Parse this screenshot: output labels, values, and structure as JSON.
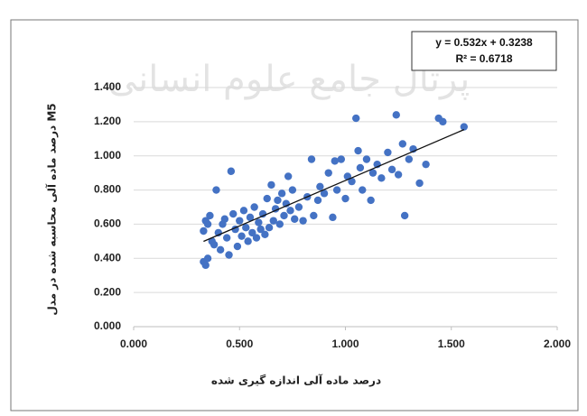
{
  "chart_data": {
    "type": "scatter",
    "watermark": "پرتال جامع علوم انسانی",
    "x_label": "درصد ماده آلی اندازه گیری شده",
    "y_label": "درصد ماده آلی محاسبه شده در مدل M5",
    "color": "#4472c4",
    "x": [
      0.33,
      0.34,
      0.35,
      0.33,
      0.34,
      0.35,
      0.36,
      0.37,
      0.38,
      0.39,
      0.4,
      0.41,
      0.42,
      0.43,
      0.44,
      0.45,
      0.46,
      0.47,
      0.48,
      0.49,
      0.5,
      0.51,
      0.52,
      0.53,
      0.54,
      0.55,
      0.56,
      0.57,
      0.58,
      0.59,
      0.6,
      0.61,
      0.62,
      0.63,
      0.64,
      0.65,
      0.66,
      0.67,
      0.68,
      0.69,
      0.7,
      0.71,
      0.72,
      0.73,
      0.74,
      0.75,
      0.76,
      0.78,
      0.8,
      0.82,
      0.84,
      0.85,
      0.87,
      0.88,
      0.9,
      0.92,
      0.94,
      0.95,
      0.96,
      0.98,
      1.0,
      1.01,
      1.03,
      1.05,
      1.06,
      1.07,
      1.08,
      1.1,
      1.12,
      1.13,
      1.15,
      1.17,
      1.2,
      1.22,
      1.24,
      1.25,
      1.27,
      1.28,
      1.3,
      1.32,
      1.35,
      1.38,
      1.44,
      1.46,
      1.56
    ],
    "values": [
      0.38,
      0.36,
      0.4,
      0.56,
      0.62,
      0.6,
      0.65,
      0.5,
      0.48,
      0.8,
      0.55,
      0.45,
      0.6,
      0.63,
      0.52,
      0.42,
      0.91,
      0.66,
      0.57,
      0.47,
      0.62,
      0.53,
      0.68,
      0.58,
      0.5,
      0.64,
      0.55,
      0.7,
      0.52,
      0.61,
      0.57,
      0.66,
      0.54,
      0.75,
      0.58,
      0.83,
      0.62,
      0.69,
      0.74,
      0.6,
      0.78,
      0.65,
      0.72,
      0.88,
      0.68,
      0.8,
      0.63,
      0.7,
      0.62,
      0.76,
      0.98,
      0.65,
      0.74,
      0.82,
      0.78,
      0.9,
      0.64,
      0.97,
      0.8,
      0.98,
      0.75,
      0.88,
      0.85,
      1.22,
      1.03,
      0.93,
      0.8,
      0.98,
      0.74,
      0.9,
      0.95,
      0.87,
      1.02,
      0.92,
      1.24,
      0.89,
      1.07,
      0.65,
      0.98,
      1.04,
      0.84,
      0.95,
      1.22,
      1.2,
      1.17
    ],
    "trendline": {
      "equation": "y = 0.532x + 0.3238",
      "r2_label": "R² = 0.6718",
      "slope": 0.532,
      "intercept": 0.3238
    },
    "xlim": [
      0,
      2
    ],
    "xticks": [
      {
        "value": 0,
        "label": "0.000"
      },
      {
        "value": 0.5,
        "label": "0.500"
      },
      {
        "value": 1,
        "label": "1.000"
      },
      {
        "value": 1.5,
        "label": "1.500"
      },
      {
        "value": 2,
        "label": "2.000"
      }
    ],
    "ylim": [
      0,
      1.4
    ],
    "yticks": [
      {
        "value": 0,
        "label": "0.000"
      },
      {
        "value": 0.2,
        "label": "0.200"
      },
      {
        "value": 0.4,
        "label": "0.400"
      },
      {
        "value": 0.6,
        "label": "0.600"
      },
      {
        "value": 0.8,
        "label": "0.800"
      },
      {
        "value": 1,
        "label": "1.000"
      },
      {
        "value": 1.2,
        "label": "1.200"
      },
      {
        "value": 1.4,
        "label": "1.400"
      }
    ],
    "grid": true
  }
}
